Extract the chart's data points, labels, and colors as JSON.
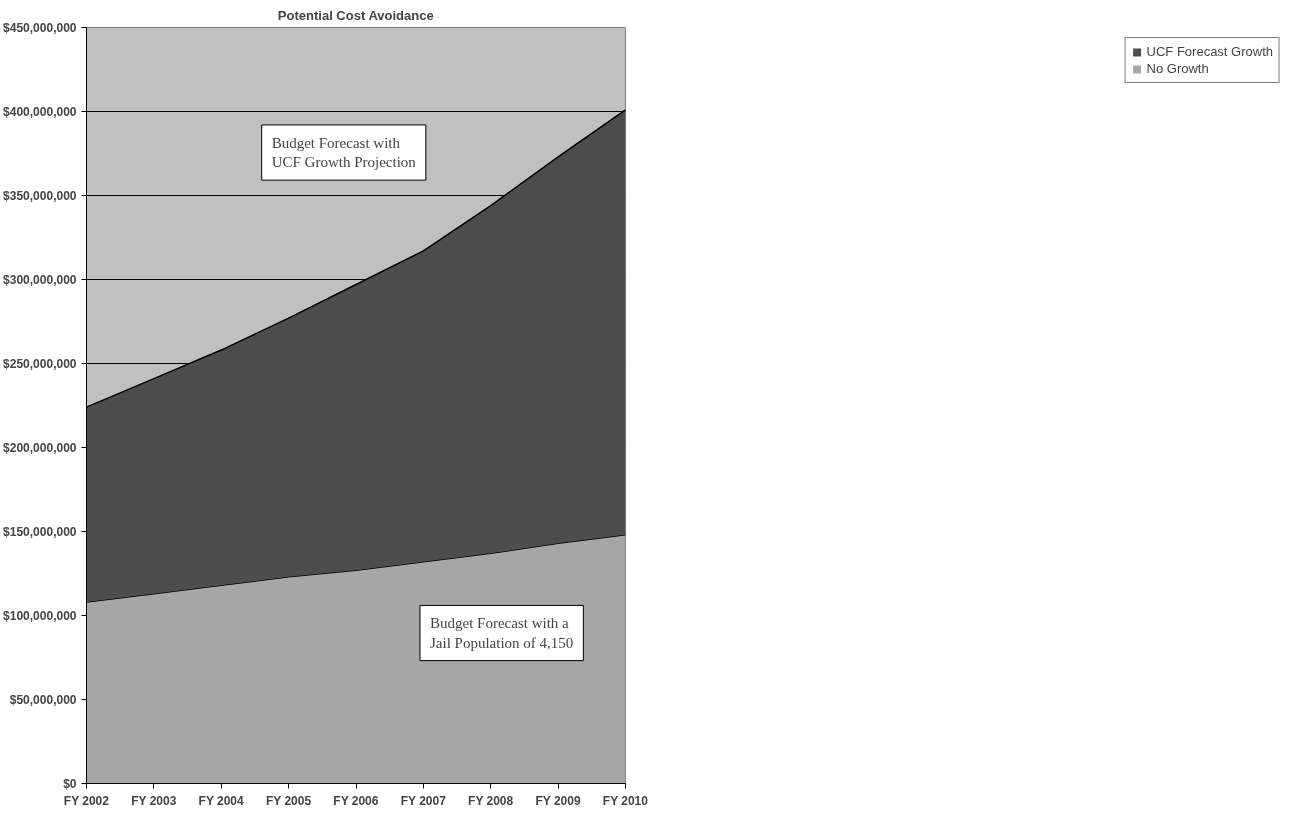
{
  "chart_data": {
    "type": "area",
    "title": "Potential Cost Avoidance",
    "stacked": true,
    "categories": [
      "FY 2002",
      "FY 2003",
      "FY 2004",
      "FY 2005",
      "FY 2006",
      "FY 2007",
      "FY 2008",
      "FY 2009",
      "FY 2010"
    ],
    "series": [
      {
        "name": "No Growth",
        "color": "#a6a6a6",
        "values": [
          108000000,
          113000000,
          118000000,
          123000000,
          127000000,
          132000000,
          137000000,
          143000000,
          148000000
        ]
      },
      {
        "name": "UCF Forecast Growth",
        "color": "#4d4d4d",
        "values": [
          116000000,
          128000000,
          140000000,
          154000000,
          170000000,
          185000000,
          207000000,
          230000000,
          253000000
        ]
      }
    ],
    "ylim": [
      0,
      450000000
    ],
    "yticks": [
      {
        "value": 0,
        "label": "$0"
      },
      {
        "value": 50000000,
        "label": "$50,000,000"
      },
      {
        "value": 100000000,
        "label": "$100,000,000"
      },
      {
        "value": 150000000,
        "label": "$150,000,000"
      },
      {
        "value": 200000000,
        "label": "$200,000,000"
      },
      {
        "value": 250000000,
        "label": "$250,000,000"
      },
      {
        "value": 300000000,
        "label": "$300,000,000"
      },
      {
        "value": 350000000,
        "label": "$350,000,000"
      },
      {
        "value": 400000000,
        "label": "$400,000,000"
      },
      {
        "value": 450000000,
        "label": "$450,000,000"
      }
    ],
    "grid": "y",
    "legend": "right",
    "annotations": [
      "Budget Forecast with\nUCF Growth Projection",
      "Budget Forecast with a\nJail Population of 4,150"
    ]
  }
}
